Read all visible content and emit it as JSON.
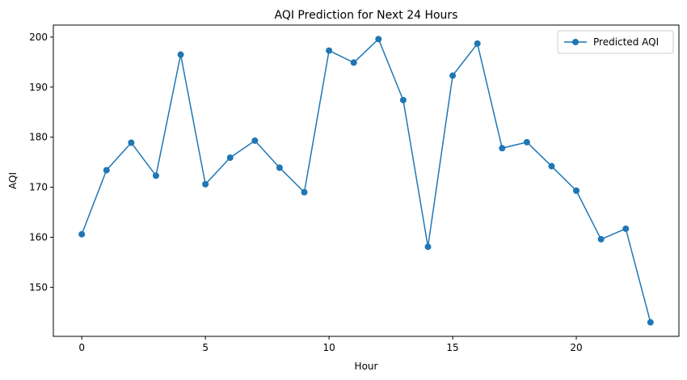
{
  "chart_data": {
    "type": "line",
    "title": "AQI Prediction for Next 24 Hours",
    "xlabel": "Hour",
    "ylabel": "AQI",
    "xlim": [
      -1.15,
      24.15
    ],
    "ylim": [
      140.2,
      202.4
    ],
    "xticks": [
      0,
      5,
      10,
      15,
      20
    ],
    "yticks": [
      150,
      160,
      170,
      180,
      190,
      200
    ],
    "grid": false,
    "legend": {
      "position": "top-right"
    },
    "series": [
      {
        "name": "Predicted AQI",
        "color": "#1f77b4",
        "marker": "circle",
        "x": [
          0,
          1,
          2,
          3,
          4,
          5,
          6,
          7,
          8,
          9,
          10,
          11,
          12,
          13,
          14,
          15,
          16,
          17,
          18,
          19,
          20,
          21,
          22,
          23
        ],
        "values": [
          160.6,
          173.4,
          178.9,
          172.3,
          196.5,
          170.6,
          175.9,
          179.3,
          173.9,
          169.0,
          197.3,
          194.9,
          199.6,
          187.4,
          158.1,
          192.3,
          198.7,
          177.8,
          179.0,
          174.2,
          169.3,
          159.6,
          161.7,
          143.0
        ]
      }
    ]
  }
}
